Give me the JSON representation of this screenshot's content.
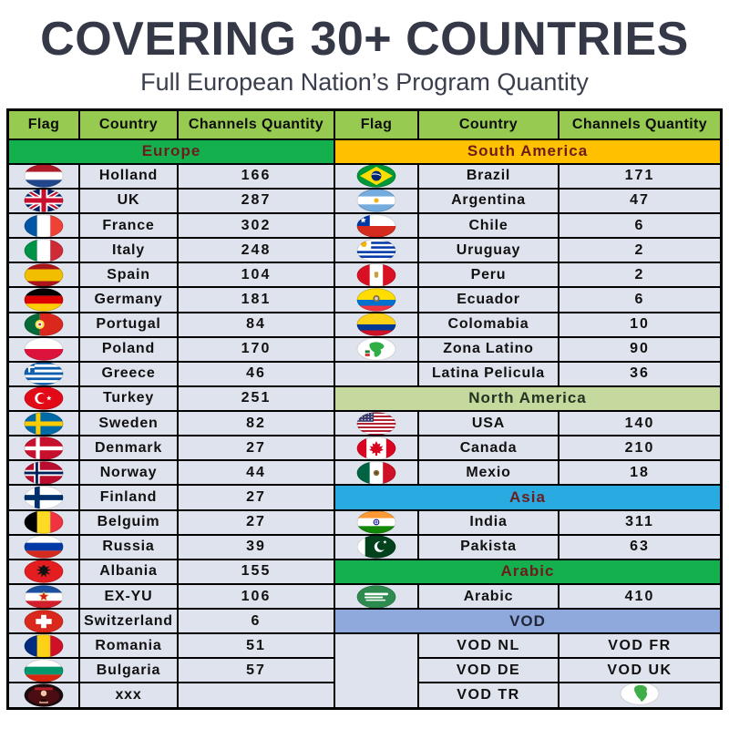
{
  "header": {
    "title": "COVERING 30+ COUNTRIES",
    "subtitle": "Full European Nation’s Program Quantity",
    "title_color": "#343847"
  },
  "table": {
    "column_headers": [
      "Flag",
      "Country",
      "Channels Quantity",
      "Flag",
      "Country",
      "Channels Quantity"
    ],
    "header_bg": "#97ca50",
    "row_bg": "#dfe3ee",
    "border_color": "#000000",
    "sections": {
      "europe": {
        "label": "Europe",
        "bg": "#15b04e",
        "fg": "#6b1d1d"
      },
      "south_america": {
        "label": "South America",
        "bg": "#ffc000",
        "fg": "#6b1d1d"
      },
      "north_america": {
        "label": "North America",
        "bg": "#c5d89e",
        "fg": "#223322"
      },
      "asia": {
        "label": "Asia",
        "bg": "#29abe2",
        "fg": "#6b1d1d"
      },
      "arabic": {
        "label": "Arabic",
        "bg": "#15b04e",
        "fg": "#6b1d1d"
      },
      "vod": {
        "label": "VOD",
        "bg": "#8fa9dc",
        "fg": "#22283a"
      }
    },
    "left_rows": [
      {
        "type": "section",
        "key": "europe"
      },
      {
        "type": "country",
        "flag": "netherlands",
        "country": "Holland",
        "channels": "166"
      },
      {
        "type": "country",
        "flag": "uk",
        "country": "UK",
        "channels": "287"
      },
      {
        "type": "country",
        "flag": "france",
        "country": "France",
        "channels": "302"
      },
      {
        "type": "country",
        "flag": "italy",
        "country": "Italy",
        "channels": "248"
      },
      {
        "type": "country",
        "flag": "spain",
        "country": "Spain",
        "channels": "104"
      },
      {
        "type": "country",
        "flag": "germany",
        "country": "Germany",
        "channels": "181"
      },
      {
        "type": "country",
        "flag": "portugal",
        "country": "Portugal",
        "channels": "84"
      },
      {
        "type": "country",
        "flag": "poland",
        "country": "Poland",
        "channels": "170"
      },
      {
        "type": "country",
        "flag": "greece",
        "country": "Greece",
        "channels": "46"
      },
      {
        "type": "country",
        "flag": "turkey",
        "country": "Turkey",
        "channels": "251"
      },
      {
        "type": "country",
        "flag": "sweden",
        "country": "Sweden",
        "channels": "82"
      },
      {
        "type": "country",
        "flag": "denmark",
        "country": "Denmark",
        "channels": "27"
      },
      {
        "type": "country",
        "flag": "norway",
        "country": "Norway",
        "channels": "44"
      },
      {
        "type": "country",
        "flag": "finland",
        "country": "Finland",
        "channels": "27"
      },
      {
        "type": "country",
        "flag": "belgium",
        "country": "Belguim",
        "channels": "27"
      },
      {
        "type": "country",
        "flag": "russia",
        "country": "Russia",
        "channels": "39"
      },
      {
        "type": "country",
        "flag": "albania",
        "country": "Albania",
        "channels": "155"
      },
      {
        "type": "country",
        "flag": "exyu",
        "country": "EX-YU",
        "channels": "106"
      },
      {
        "type": "country",
        "flag": "switzerland",
        "country": "Switzerland",
        "channels": "6"
      },
      {
        "type": "country",
        "flag": "romania",
        "country": "Romania",
        "channels": "51"
      },
      {
        "type": "country",
        "flag": "bulgaria",
        "country": "Bulgaria",
        "channels": "57"
      },
      {
        "type": "country",
        "flag": "xxx",
        "country": "xxx",
        "channels": ""
      }
    ],
    "right_rows": [
      {
        "type": "section",
        "key": "south_america"
      },
      {
        "type": "country",
        "flag": "brazil",
        "country": "Brazil",
        "channels": "171"
      },
      {
        "type": "country",
        "flag": "argentina",
        "country": "Argentina",
        "channels": "47"
      },
      {
        "type": "country",
        "flag": "chile",
        "country": "Chile",
        "channels": "6"
      },
      {
        "type": "country",
        "flag": "uruguay",
        "country": "Uruguay",
        "channels": "2"
      },
      {
        "type": "country",
        "flag": "peru",
        "country": "Peru",
        "channels": "2"
      },
      {
        "type": "country",
        "flag": "ecuador",
        "country": "Ecuador",
        "channels": "6"
      },
      {
        "type": "country",
        "flag": "colombia",
        "country": "Colomabia",
        "channels": "10"
      },
      {
        "type": "country",
        "flag": "latin-map",
        "country": "Zona Latino",
        "channels": "90"
      },
      {
        "type": "country",
        "flag": "",
        "country": "Latina Pelicula",
        "channels": "36"
      },
      {
        "type": "section",
        "key": "north_america"
      },
      {
        "type": "country",
        "flag": "usa",
        "country": "USA",
        "channels": "140"
      },
      {
        "type": "country",
        "flag": "canada",
        "country": "Canada",
        "channels": "210"
      },
      {
        "type": "country",
        "flag": "mexico",
        "country": "Mexio",
        "channels": "18"
      },
      {
        "type": "section",
        "key": "asia"
      },
      {
        "type": "country",
        "flag": "india",
        "country": "India",
        "channels": "311"
      },
      {
        "type": "country",
        "flag": "pakistan",
        "country": "Pakista",
        "channels": "63"
      },
      {
        "type": "section",
        "key": "arabic"
      },
      {
        "type": "country",
        "flag": "saudi-arabia",
        "country": "Arabic",
        "channels": "410"
      },
      {
        "type": "section",
        "key": "vod"
      },
      {
        "type": "vod",
        "col_a": "VOD NL",
        "col_b": "VOD FR"
      },
      {
        "type": "vod",
        "col_a": "VOD DE",
        "col_b": "VOD UK"
      },
      {
        "type": "vod",
        "col_a": "VOD TR",
        "col_b_icon": "africa"
      }
    ]
  }
}
